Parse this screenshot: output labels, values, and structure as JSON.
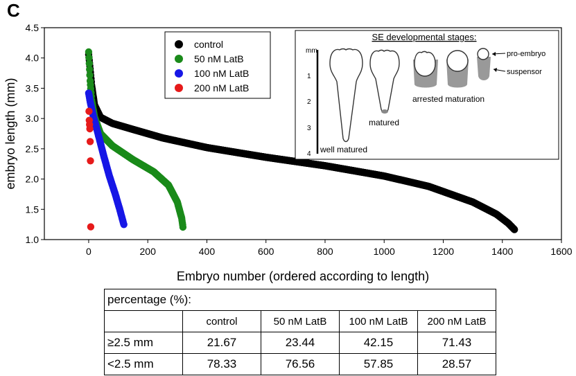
{
  "panel_label": "C",
  "chart_data": {
    "type": "scatter",
    "xlabel": "Embryo number (ordered according to length)",
    "ylabel": "embryo length (mm)",
    "xlim": [
      -150,
      1600
    ],
    "ylim": [
      1.0,
      4.5
    ],
    "xticks": [
      "0",
      "200",
      "400",
      "600",
      "800",
      "1000",
      "1200",
      "1400",
      "1600"
    ],
    "yticks": [
      "1.0",
      "1.5",
      "2.0",
      "2.5",
      "3.0",
      "3.5",
      "4.0",
      "4.5"
    ],
    "legend_position": "top-left",
    "series": [
      {
        "name": "control",
        "color": "#000000",
        "n": 1442,
        "curve": [
          [
            0,
            4.06
          ],
          [
            5,
            3.82
          ],
          [
            10,
            3.55
          ],
          [
            20,
            3.22
          ],
          [
            40,
            3.02
          ],
          [
            80,
            2.92
          ],
          [
            150,
            2.82
          ],
          [
            250,
            2.68
          ],
          [
            400,
            2.52
          ],
          [
            600,
            2.36
          ],
          [
            800,
            2.22
          ],
          [
            1000,
            2.05
          ],
          [
            1150,
            1.88
          ],
          [
            1300,
            1.62
          ],
          [
            1380,
            1.42
          ],
          [
            1420,
            1.27
          ],
          [
            1442,
            1.16
          ]
        ]
      },
      {
        "name": "50 nM LatB",
        "color": "#1a8a1a",
        "n": 320,
        "curve": [
          [
            0,
            4.1
          ],
          [
            5,
            3.62
          ],
          [
            10,
            3.3
          ],
          [
            20,
            3.02
          ],
          [
            40,
            2.75
          ],
          [
            80,
            2.55
          ],
          [
            150,
            2.32
          ],
          [
            220,
            2.12
          ],
          [
            270,
            1.9
          ],
          [
            300,
            1.62
          ],
          [
            315,
            1.35
          ],
          [
            320,
            1.17
          ]
        ]
      },
      {
        "name": "100 nM LatB",
        "color": "#1717e6",
        "n": 120,
        "curve": [
          [
            0,
            3.42
          ],
          [
            5,
            3.28
          ],
          [
            15,
            3.05
          ],
          [
            30,
            2.78
          ],
          [
            50,
            2.4
          ],
          [
            70,
            2.05
          ],
          [
            90,
            1.75
          ],
          [
            105,
            1.5
          ],
          [
            115,
            1.32
          ],
          [
            120,
            1.23
          ]
        ]
      },
      {
        "name": "200 nM LatB",
        "color": "#e61a1a",
        "n": 7,
        "points": [
          [
            1,
            3.12
          ],
          [
            2,
            2.97
          ],
          [
            3,
            2.9
          ],
          [
            4,
            2.83
          ],
          [
            5,
            2.62
          ],
          [
            6,
            2.3
          ],
          [
            7,
            1.21
          ]
        ]
      }
    ]
  },
  "inset": {
    "title": "SE developmental stages:",
    "scale_unit": "mm",
    "scale_ticks": [
      "1",
      "2",
      "3",
      "4"
    ],
    "labels": {
      "well_matured": "well matured",
      "matured": "matured",
      "arrested": "arrested maturation",
      "pro_embryo": "pro-embryo",
      "suspensor": "suspensor"
    }
  },
  "table": {
    "title": "percentage (%):",
    "columns": [
      "control",
      "50 nM LatB",
      "100 nM LatB",
      "200 nM LatB"
    ],
    "rows": [
      {
        "label": "≥2.5 mm",
        "values": [
          "21.67",
          "23.44",
          "42.15",
          "71.43"
        ]
      },
      {
        "label": "<2.5 mm",
        "values": [
          "78.33",
          "76.56",
          "57.85",
          "28.57"
        ]
      }
    ]
  }
}
